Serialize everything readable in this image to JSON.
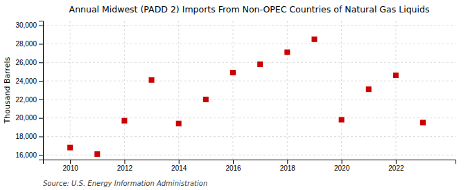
{
  "chart_data": {
    "type": "scatter",
    "title": "Annual Midwest (PADD 2) Imports From Non-OPEC Countries of Natural Gas Liquids",
    "ylabel": "Thousand Barrels",
    "annotations": [
      "Source: U.S. Energy Information Administration"
    ],
    "x": [
      2010,
      2011,
      2012,
      2013,
      2014,
      2015,
      2016,
      2017,
      2018,
      2019,
      2020,
      2021,
      2022,
      2023
    ],
    "values": [
      16800,
      16100,
      19700,
      24100,
      19400,
      22000,
      24900,
      25800,
      27100,
      28500,
      19800,
      23100,
      24600,
      19500
    ],
    "color": "#cc0000",
    "marker": "square",
    "xlim": [
      2009.0,
      2024.2
    ],
    "xticks": [
      2010,
      2012,
      2014,
      2016,
      2018,
      2020,
      2022
    ],
    "ylim": [
      15500,
      30500
    ],
    "yticks": [
      {
        "value": 16000,
        "label": "16,000"
      },
      {
        "value": 18000,
        "label": "18,000"
      },
      {
        "value": 20000,
        "label": "20,000"
      },
      {
        "value": 22000,
        "label": "22,000"
      },
      {
        "value": 24000,
        "label": "24,000"
      },
      {
        "value": 26000,
        "label": "26,000"
      },
      {
        "value": 28000,
        "label": "28,000"
      },
      {
        "value": 30000,
        "label": "30,000"
      }
    ],
    "grid": true
  }
}
